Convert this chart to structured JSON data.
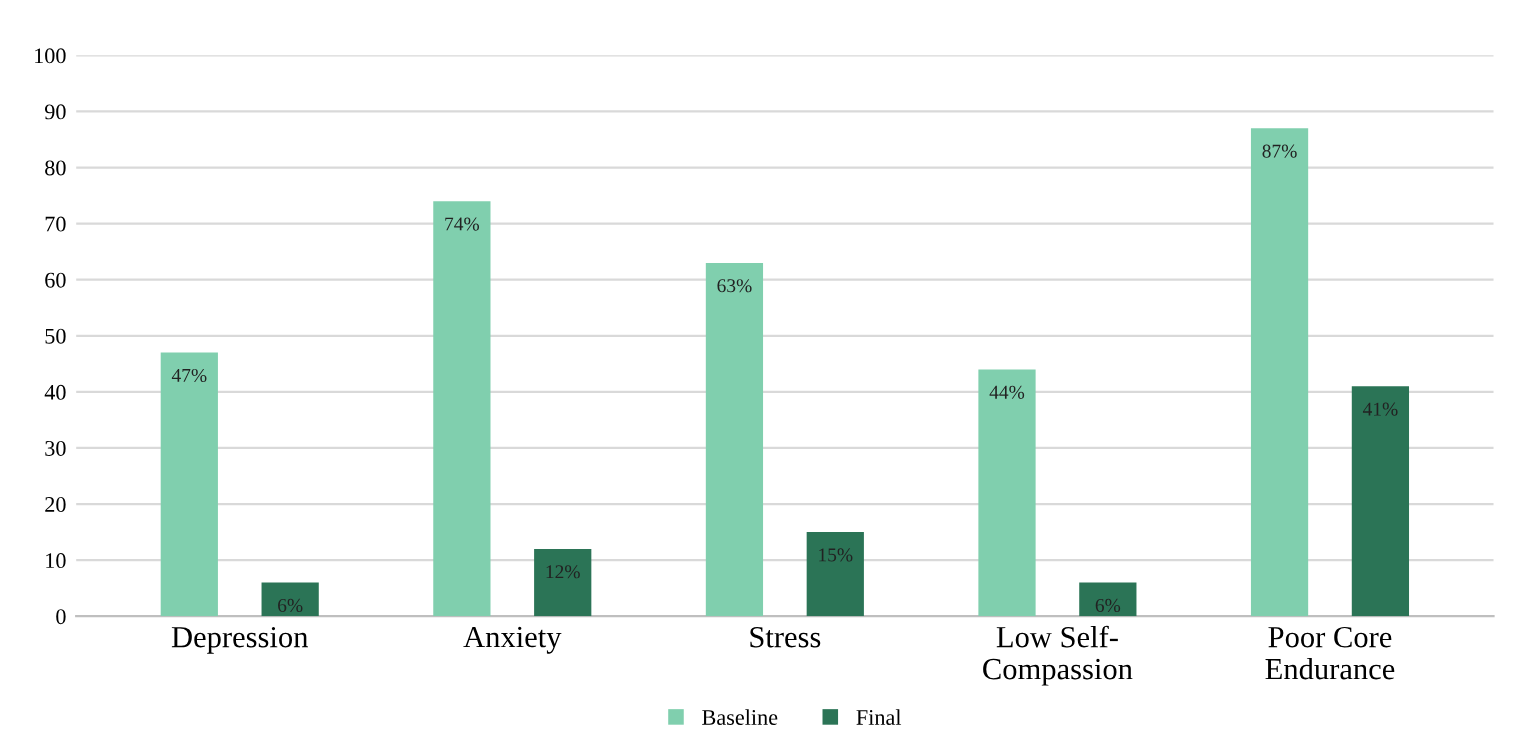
{
  "chart_data": {
    "type": "bar",
    "categories": [
      "Depression",
      "Anxiety",
      "Stress",
      "Low Self-\nCompassion",
      "Poor Core\nEndurance"
    ],
    "series": [
      {
        "name": "Baseline",
        "color": "#80cfae",
        "values": [
          47,
          74,
          63,
          44,
          87
        ],
        "value_labels": [
          "47%",
          "74%",
          "63%",
          "44%",
          "87%"
        ]
      },
      {
        "name": "Final",
        "color": "#2b7456",
        "values": [
          6,
          12,
          15,
          6,
          41
        ],
        "value_labels": [
          "6%",
          "12%",
          "15%",
          "6%",
          "41%"
        ]
      }
    ],
    "ylim": [
      0,
      100
    ],
    "yticks": [
      0,
      10,
      20,
      30,
      40,
      50,
      60,
      70,
      80,
      90,
      100
    ],
    "grid": "y",
    "legend": "bottom"
  }
}
